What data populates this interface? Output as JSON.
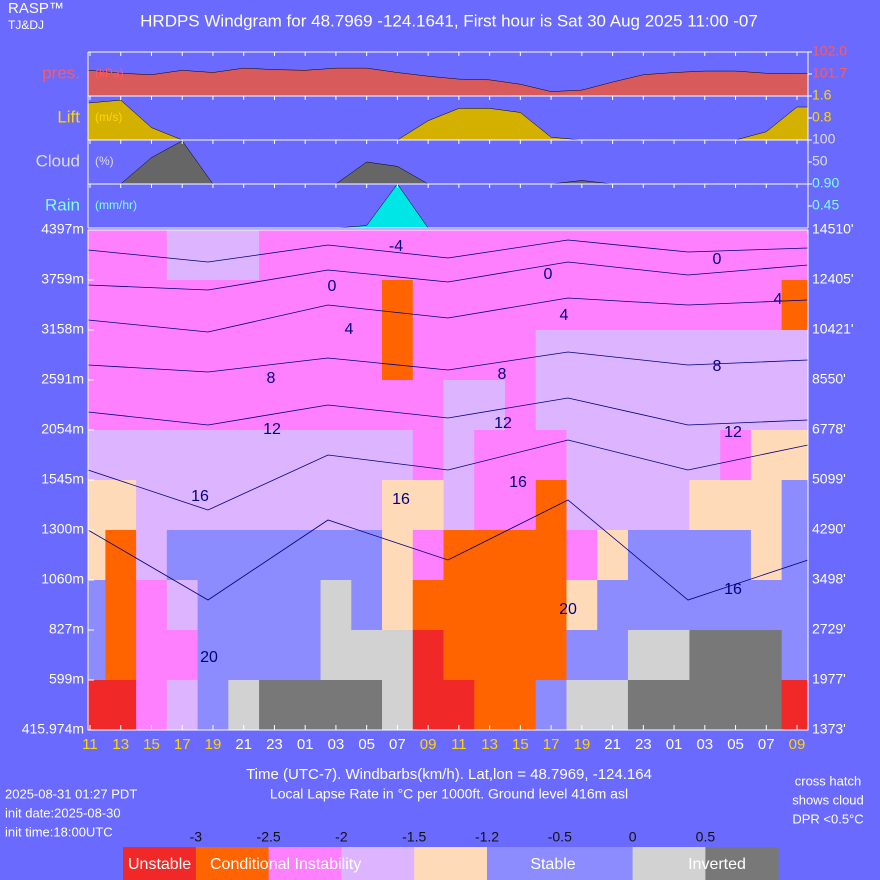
{
  "header": {
    "brand": "RASP™",
    "authors": "TJ&DJ",
    "title": "HRDPS Windgram for 48.7969 -124.1641, First hour is Sat 30 Aug 2025 11:00 -07"
  },
  "chart_data": [
    {
      "type": "area",
      "label": "pres.",
      "units": "(kPa)",
      "color": "#d85a5a",
      "label_color": "#ff5a5a",
      "ylim": [
        101.4,
        102.0
      ],
      "yticks": [
        {
          "value": 102.0,
          "label": "102.0"
        },
        101.7
      ],
      "values": [
        101.75,
        101.71,
        101.69,
        101.75,
        101.72,
        101.78,
        101.76,
        101.75,
        101.78,
        101.78,
        101.72,
        101.67,
        101.63,
        101.62,
        101.56,
        101.46,
        101.48,
        101.59,
        101.69,
        101.72,
        101.74,
        101.74,
        101.71,
        101.71
      ]
    },
    {
      "type": "area",
      "label": "Lift",
      "units": "(m/s)",
      "color": "#d4b000",
      "label_color": "#ffd700",
      "ylim": [
        0,
        1.6
      ],
      "yticks": [
        1.6,
        0.8
      ],
      "values": [
        1.35,
        1.45,
        0.45,
        0,
        0,
        0,
        0,
        0,
        0,
        0,
        0,
        0.7,
        1.15,
        1.15,
        1.0,
        0.1,
        0,
        0,
        0,
        0,
        0,
        0,
        0.3,
        1.2
      ]
    },
    {
      "type": "area",
      "label": "Cloud",
      "units": "(%)",
      "color": "#666666",
      "label_color": "#dddddd",
      "ylim": [
        0,
        100
      ],
      "yticks": [
        100,
        50
      ],
      "values": [
        0,
        0,
        60,
        98,
        0,
        0,
        0,
        0,
        0,
        50,
        40,
        0,
        0,
        0,
        0,
        0,
        8,
        0,
        0,
        0,
        0,
        0,
        0,
        0
      ]
    },
    {
      "type": "area",
      "label": "Rain",
      "units": "(mm/hr)",
      "color": "#00e5e5",
      "label_color": "#80ffff",
      "ylim": [
        0,
        0.9
      ],
      "yticks": [
        {
          "value": 0.9,
          "label": "0.90"
        },
        0.45
      ],
      "values": [
        0,
        0,
        0,
        0,
        0,
        0,
        0,
        0,
        0,
        0.05,
        0.9,
        0,
        0,
        0,
        0,
        0,
        0,
        0,
        0,
        0,
        0,
        0,
        0,
        0
      ]
    },
    {
      "type": "heatmap",
      "categories": [
        "11",
        "13",
        "15",
        "17",
        "19",
        "21",
        "23",
        "01",
        "03",
        "05",
        "07",
        "09",
        "11",
        "13",
        "15",
        "17",
        "19",
        "21",
        "23",
        "01",
        "03",
        "05",
        "07",
        "09"
      ],
      "tick_colors": [
        "#ffd700",
        "#ffd700",
        "#ffd700",
        "#ffd700",
        "#ffd700",
        "#ffffff",
        "#ffffff",
        "#ffffff",
        "#ffffff",
        "#ffffff",
        "#ffffff",
        "#ffd700",
        "#ffd700",
        "#ffd700",
        "#ffd700",
        "#ffd700",
        "#ffd700",
        "#ffffff",
        "#ffffff",
        "#ffffff",
        "#ffffff",
        "#ffffff",
        "#ffffff",
        "#ffd700"
      ],
      "left_labels": [
        "4397m",
        "3759m",
        "3158m",
        "2591m",
        "2054m",
        "1545m",
        "1300m",
        "1060m",
        "827m",
        "599m",
        "415.974m"
      ],
      "right_labels": [
        "14510'",
        "12405'",
        "10421'",
        "8550'",
        "6778'",
        "5099'",
        "4290'",
        "3498'",
        "2729'",
        "1977'",
        "1373'"
      ],
      "values": [
        [
          -2.2,
          -2.2,
          -2.2,
          -1.7,
          -1.7,
          -1.7,
          -2.2,
          -2.2,
          -2.2,
          -2.2,
          -2.2,
          -2.2,
          -2.2,
          -2.2,
          -2.2,
          -2.2,
          -2.2,
          -2.2,
          -2.2,
          -2.2,
          -2.2,
          -2.2,
          -2.2,
          -2.2
        ],
        [
          -2.2,
          -2.2,
          -2.2,
          -2.2,
          -2.2,
          -2.2,
          -2.2,
          -2.2,
          -2.2,
          -2.2,
          -2.7,
          -2.2,
          -2.2,
          -2.2,
          -2.2,
          -2.2,
          -2.2,
          -2.2,
          -2.2,
          -2.2,
          -2.2,
          -2.2,
          -2.2,
          -2.7
        ],
        [
          -2.2,
          -2.2,
          -2.2,
          -2.2,
          -2.2,
          -2.2,
          -2.2,
          -2.2,
          -2.2,
          -2.2,
          -2.7,
          -2.2,
          -2.2,
          -2.2,
          -2.2,
          -1.7,
          -1.7,
          -1.7,
          -1.7,
          -1.7,
          -1.7,
          -1.7,
          -1.7,
          -1.7
        ],
        [
          -2.2,
          -2.2,
          -2.2,
          -2.2,
          -2.2,
          -2.2,
          -2.2,
          -2.2,
          -2.2,
          -2.2,
          -2.2,
          -2.2,
          -1.7,
          -1.7,
          -2.2,
          -1.7,
          -1.7,
          -1.7,
          -1.7,
          -1.7,
          -1.7,
          -1.7,
          -1.7,
          -1.7
        ],
        [
          -1.7,
          -1.7,
          -1.7,
          -1.7,
          -1.7,
          -1.7,
          -1.7,
          -1.7,
          -1.7,
          -1.7,
          -1.7,
          -2.2,
          -1.7,
          -2.2,
          -2.2,
          -2.2,
          -1.7,
          -1.7,
          -1.7,
          -1.7,
          -1.7,
          -2.2,
          -1.3,
          -1.3
        ],
        [
          -1.3,
          -1.3,
          -1.7,
          -1.7,
          -1.7,
          -1.7,
          -1.7,
          -1.7,
          -1.7,
          -1.7,
          -1.3,
          -1.3,
          -1.7,
          -2.2,
          -2.2,
          -2.7,
          -1.7,
          -1.7,
          -1.7,
          -1.7,
          -1.3,
          -1.3,
          -1.3,
          -0.8
        ],
        [
          -1.3,
          -2.7,
          -1.7,
          -0.8,
          -0.8,
          -0.8,
          -0.8,
          -0.8,
          -0.8,
          -0.8,
          -1.3,
          -2.2,
          -2.7,
          -2.7,
          -2.7,
          -2.7,
          -2.2,
          -1.3,
          -0.8,
          -0.8,
          -0.8,
          -0.8,
          -1.3,
          -0.8
        ],
        [
          -0.8,
          -2.7,
          -2.2,
          -1.7,
          -0.8,
          -0.8,
          -0.8,
          -0.8,
          0.2,
          -0.8,
          -1.3,
          -2.7,
          -2.7,
          -2.7,
          -2.7,
          -2.7,
          -1.3,
          -0.8,
          -0.8,
          -0.8,
          -0.8,
          -0.8,
          -0.8,
          -0.8
        ],
        [
          -0.8,
          -2.7,
          -2.2,
          -2.2,
          -0.8,
          -0.8,
          -0.8,
          -0.8,
          0.2,
          0.2,
          0.2,
          -3.2,
          -2.7,
          -2.7,
          -2.7,
          -2.7,
          -0.8,
          -0.8,
          0.2,
          0.2,
          0.8,
          0.8,
          0.8,
          -0.8
        ],
        [
          -3.2,
          -3.2,
          -2.2,
          -1.7,
          -0.8,
          0.2,
          0.8,
          0.8,
          0.8,
          0.8,
          0.2,
          -3.2,
          -3.2,
          -2.7,
          -2.7,
          -0.8,
          0.2,
          0.2,
          0.8,
          0.8,
          0.8,
          0.8,
          0.8,
          -3.2
        ]
      ],
      "contour_labels": [
        -4,
        0,
        0,
        0,
        4,
        4,
        4,
        8,
        8,
        8,
        12,
        12,
        12,
        16,
        16,
        16,
        16,
        20,
        20
      ],
      "xlabel": "Time (UTC-7). Windbarbs(km/h). Lat,lon = 48.7969, -124.164",
      "subtitle": "Local Lapse Rate in °C per 1000ft.   Ground level 416m asl",
      "color_scale": {
        "thresholds": [
          -3,
          -2.5,
          -2,
          -1.5,
          -1.2,
          -0.5,
          0,
          0.5
        ],
        "colors": [
          "#f02828",
          "#ff6400",
          "#ff80ff",
          "#dcb4ff",
          "#ffdab9",
          "#8c8cff",
          "#8c8cff",
          "#d2d2d2",
          "#787878"
        ],
        "labels": [
          "Unstable",
          "Conditional Instability",
          "Stable",
          "Inverted"
        ]
      }
    }
  ],
  "footer": {
    "left": [
      "2025-08-31 01:27 PDT",
      "init date:2025-08-30",
      "init time:18:00UTC"
    ],
    "right": [
      "cross hatch",
      "shows cloud",
      "DPR <0.5°C"
    ]
  }
}
